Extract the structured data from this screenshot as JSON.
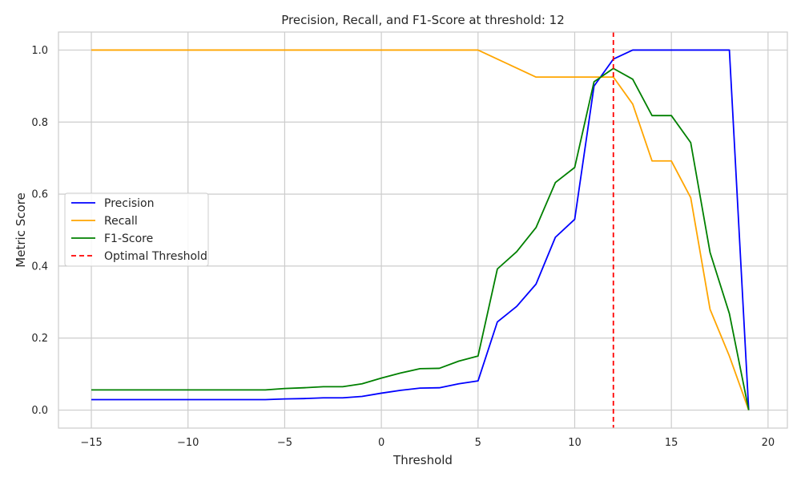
{
  "chart_data": {
    "type": "line",
    "title": "Precision, Recall, and F1-Score at threshold: 12",
    "xlabel": "Threshold",
    "ylabel": "Metric Score",
    "xlim": [
      -16.7,
      21.0
    ],
    "ylim": [
      -0.05,
      1.05
    ],
    "xticks": [
      -15,
      -10,
      -5,
      0,
      5,
      10,
      15,
      20
    ],
    "xtick_labels": [
      "−15",
      "−10",
      "−5",
      "0",
      "5",
      "10",
      "15",
      "20"
    ],
    "yticks": [
      0.0,
      0.2,
      0.4,
      0.6,
      0.8,
      1.0
    ],
    "ytick_labels": [
      "0.0",
      "0.2",
      "0.4",
      "0.6",
      "0.8",
      "1.0"
    ],
    "grid": true,
    "legend_position": "center-left",
    "x": [
      -15,
      -14,
      -13,
      -12,
      -11,
      -10,
      -9,
      -8,
      -7,
      -6,
      -5,
      -4,
      -3,
      -2,
      -1,
      0,
      1,
      2,
      3,
      4,
      5,
      6,
      7,
      8,
      9,
      10,
      11,
      12,
      13,
      14,
      15,
      16,
      17,
      18,
      19
    ],
    "series": [
      {
        "name": "Precision",
        "color": "#0000ff",
        "style": "solid",
        "values": [
          0.029,
          0.029,
          0.029,
          0.029,
          0.029,
          0.029,
          0.029,
          0.029,
          0.029,
          0.029,
          0.031,
          0.032,
          0.034,
          0.034,
          0.038,
          0.047,
          0.055,
          0.061,
          0.062,
          0.073,
          0.081,
          0.245,
          0.288,
          0.35,
          0.48,
          0.53,
          0.9,
          0.975,
          1.0,
          1.0,
          1.0,
          1.0,
          1.0,
          1.0,
          0.0
        ]
      },
      {
        "name": "Recall",
        "color": "#ffa500",
        "style": "solid",
        "values": [
          1.0,
          1.0,
          1.0,
          1.0,
          1.0,
          1.0,
          1.0,
          1.0,
          1.0,
          1.0,
          1.0,
          1.0,
          1.0,
          1.0,
          1.0,
          1.0,
          1.0,
          1.0,
          1.0,
          1.0,
          1.0,
          0.975,
          0.95,
          0.925,
          0.925,
          0.925,
          0.925,
          0.925,
          0.85,
          0.692,
          0.692,
          0.59,
          0.28,
          0.15,
          0.0
        ]
      },
      {
        "name": "F1-Score",
        "color": "#008000",
        "style": "solid",
        "values": [
          0.056,
          0.056,
          0.056,
          0.056,
          0.056,
          0.056,
          0.056,
          0.056,
          0.056,
          0.056,
          0.06,
          0.062,
          0.065,
          0.065,
          0.073,
          0.089,
          0.103,
          0.115,
          0.116,
          0.136,
          0.15,
          0.392,
          0.44,
          0.507,
          0.632,
          0.674,
          0.912,
          0.949,
          0.919,
          0.818,
          0.818,
          0.743,
          0.438,
          0.268,
          0.0
        ]
      }
    ],
    "vline": {
      "name": "Optimal Threshold",
      "x": 12,
      "color": "#ff0000",
      "style": "dashed"
    }
  }
}
